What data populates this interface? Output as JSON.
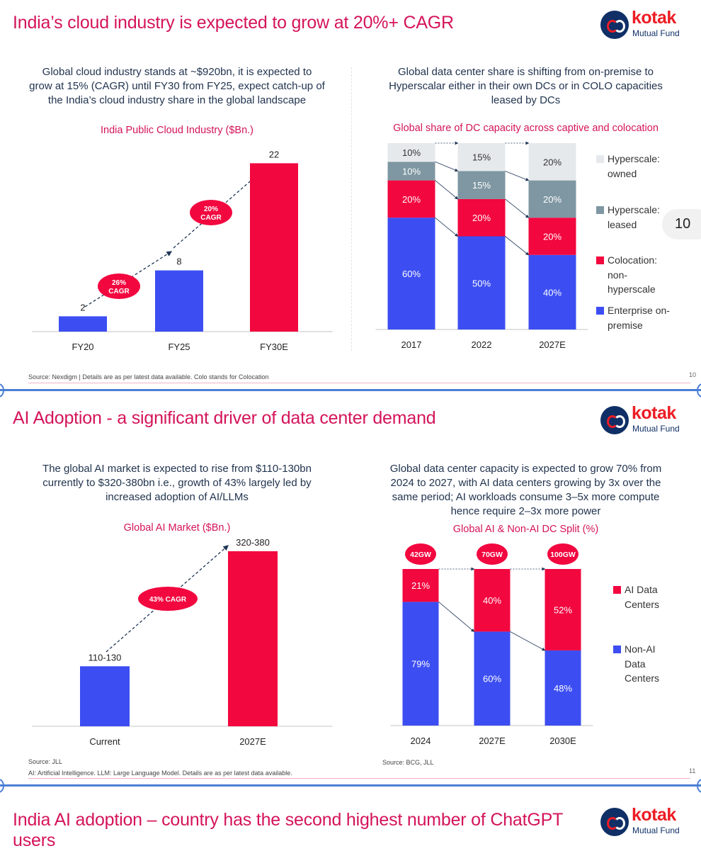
{
  "logo": {
    "brand": "kotak",
    "sub": "Mutual Fund"
  },
  "colors": {
    "red": "#f2073f",
    "blue": "#3c4ef2",
    "grey": "#7e97a2",
    "light": "#e6e9ec",
    "title": "#d4145a"
  },
  "slide1": {
    "title": "India’s cloud industry is expected to grow at 20%+ CAGR",
    "left_desc": [
      "Global cloud industry stands at ~$920bn, it is expected to",
      "grow at 15% (CAGR) until FY30 from FY25, expect catch-up of",
      "the India’s cloud industry share in the global landscape"
    ],
    "right_desc": [
      "Global data center share is shifting from on-premise to",
      "Hyperscalar either in their own DCs or in COLO capacities",
      "leased by DCs"
    ],
    "source": "Source: Nexdigm  | Details are as per latest data available. Colo stands for Colocation",
    "page_number": "10",
    "page_pill": "10"
  },
  "slide2": {
    "title": "AI Adoption - a significant driver of data center demand",
    "left_desc": [
      "The global AI market is expected to rise from $110-130bn",
      "currently to $320-380bn i.e., growth of 43% largely led by",
      "increased adoption of AI/LLMs"
    ],
    "right_desc": [
      "Global data center capacity is expected to grow 70% from",
      "2024 to 2027, with AI data centers growing by 3x over the",
      "same period; AI workloads consume 3–5x more compute",
      "hence require 2–3x more power"
    ],
    "source_left": "Source: JLL",
    "footnote": "AI: Artificial Intelligence. LLM: Large Language Model. Details are as per latest data available.",
    "source_right": "Source: BCG, JLL",
    "page_number": "11"
  },
  "slide3": {
    "title": [
      "India AI adoption – country has the second highest number of ChatGPT",
      "users"
    ]
  },
  "chart_data": [
    {
      "type": "bar",
      "title": "India Public Cloud Industry ($Bn.)",
      "categories": [
        "FY20",
        "FY25",
        "FY30E"
      ],
      "values": [
        2,
        8,
        22
      ],
      "labels": [
        "2",
        "8",
        "22"
      ],
      "annotations": [
        "26% CAGR",
        "20% CAGR"
      ],
      "ylim": [
        0,
        25
      ]
    },
    {
      "type": "bar",
      "stacked": true,
      "title": "Global share of DC capacity across captive and colocation",
      "categories": [
        "2017",
        "2022",
        "2027E"
      ],
      "series": [
        {
          "name": "Enterprise on-premise",
          "legend": [
            "Enterprise on-",
            "premise"
          ],
          "color": "#3c4ef2",
          "values": [
            60,
            50,
            40
          ]
        },
        {
          "name": "Colocation: non-hyperscale",
          "legend": [
            "Colocation:",
            "non-",
            "hyperscale"
          ],
          "color": "#f2073f",
          "values": [
            20,
            20,
            20
          ]
        },
        {
          "name": "Hyperscale: leased",
          "legend": [
            "Hyperscale:",
            "leased"
          ],
          "color": "#7e97a2",
          "values": [
            10,
            15,
            20
          ]
        },
        {
          "name": "Hyperscale: owned",
          "legend": [
            "Hyperscale:",
            "owned"
          ],
          "color": "#e6e9ec",
          "values": [
            10,
            15,
            20
          ]
        }
      ],
      "unit": "%",
      "legend_position": "right"
    },
    {
      "type": "bar",
      "title": "Global AI Market ($Bn.)",
      "categories": [
        "Current",
        "2027E"
      ],
      "values": [
        120,
        350
      ],
      "labels": [
        "110-130",
        "320-380"
      ],
      "annotations": [
        "43% CAGR"
      ],
      "ylim": [
        0,
        400
      ]
    },
    {
      "type": "bar",
      "stacked": true,
      "title": "Global AI & Non-AI DC Split  (%)",
      "categories": [
        "2024",
        "2027E",
        "2030E"
      ],
      "totals": [
        "42GW",
        "70GW",
        "100GW"
      ],
      "series": [
        {
          "name": "Non-AI Data Centers",
          "legend": [
            "Non-AI",
            "Data",
            "Centers"
          ],
          "color": "#3c4ef2",
          "values": [
            79,
            60,
            48
          ]
        },
        {
          "name": "AI Data Centers",
          "legend": [
            "AI Data",
            "Centers"
          ],
          "color": "#f2073f",
          "values": [
            21,
            40,
            52
          ]
        }
      ],
      "unit": "%",
      "legend_position": "right"
    }
  ]
}
